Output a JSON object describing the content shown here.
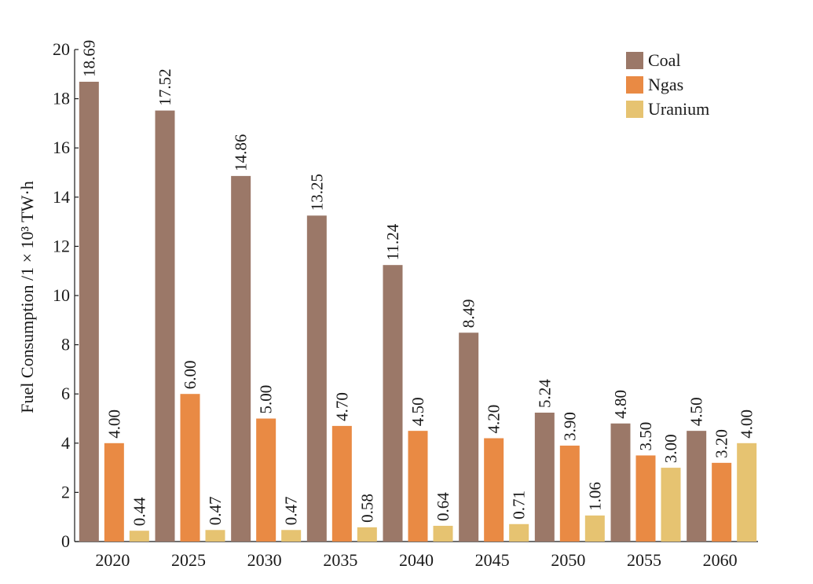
{
  "chart_data": {
    "type": "bar",
    "title": "",
    "xlabel": "",
    "ylabel": "Fuel Consumption /1 × 10³ TW·h",
    "ylim": [
      0,
      20
    ],
    "yticks": [
      "0",
      "2",
      "4",
      "6",
      "8",
      "10",
      "12",
      "14",
      "16",
      "18",
      "20"
    ],
    "grid": false,
    "legend_position": "top-right",
    "categories": [
      "2020",
      "2025",
      "2030",
      "2035",
      "2040",
      "2045",
      "2050",
      "2055",
      "2060"
    ],
    "series": [
      {
        "name": "Coal",
        "color": "#9b7868",
        "values": [
          18.69,
          17.52,
          14.86,
          13.25,
          11.24,
          8.49,
          5.24,
          4.8,
          4.5
        ],
        "labels": [
          "18.69",
          "17.52",
          "14.86",
          "13.25",
          "11.24",
          "8.49",
          "5.24",
          "4.80",
          "4.50"
        ]
      },
      {
        "name": "Ngas",
        "color": "#e98a44",
        "values": [
          4.0,
          6.0,
          5.0,
          4.7,
          4.5,
          4.2,
          3.9,
          3.5,
          3.2
        ],
        "labels": [
          "4.00",
          "6.00",
          "5.00",
          "4.70",
          "4.50",
          "4.20",
          "3.90",
          "3.50",
          "3.20"
        ]
      },
      {
        "name": "Uranium",
        "color": "#e6c371",
        "values": [
          0.44,
          0.47,
          0.47,
          0.58,
          0.64,
          0.71,
          1.06,
          3.0,
          4.0
        ],
        "labels": [
          "0.44",
          "0.47",
          "0.47",
          "0.58",
          "0.64",
          "0.71",
          "1.06",
          "3.00",
          "4.00"
        ]
      }
    ]
  }
}
